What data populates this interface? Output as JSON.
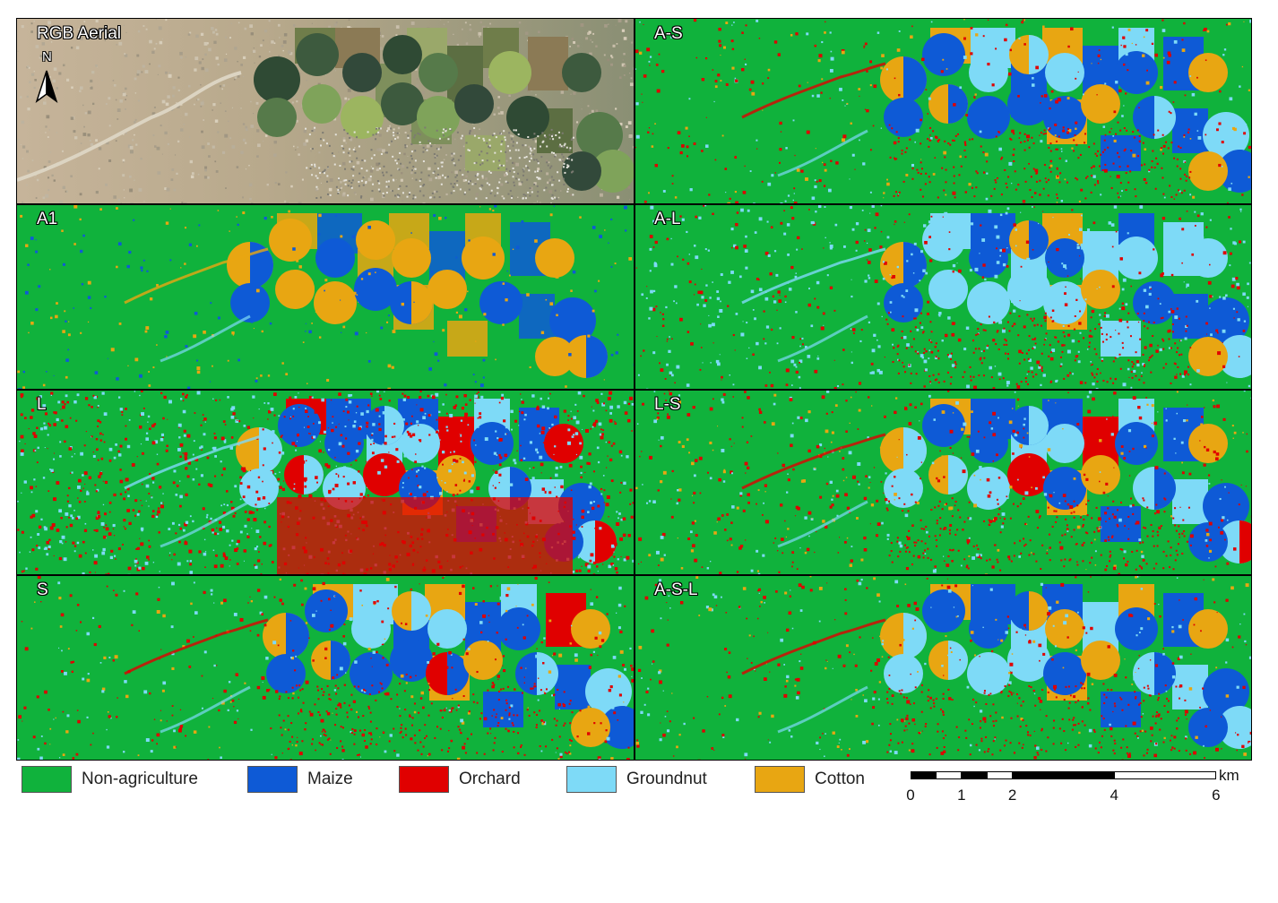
{
  "panels": [
    {
      "id": "rgb",
      "label": "RGB Aerial",
      "kind": "aerial"
    },
    {
      "id": "a-s",
      "label": "A-S",
      "kind": "class",
      "variant": "as"
    },
    {
      "id": "a1",
      "label": "A1",
      "kind": "class",
      "variant": "a1"
    },
    {
      "id": "a-l",
      "label": "A-L",
      "kind": "class",
      "variant": "al"
    },
    {
      "id": "l",
      "label": "L",
      "kind": "class",
      "variant": "l"
    },
    {
      "id": "l-s",
      "label": "L-S",
      "kind": "class",
      "variant": "ls"
    },
    {
      "id": "s",
      "label": "S",
      "kind": "class",
      "variant": "s"
    },
    {
      "id": "a-s-l",
      "label": "A-S-L",
      "kind": "class",
      "variant": "asl"
    }
  ],
  "north": {
    "label": "N"
  },
  "legend": [
    {
      "label": "Non-agriculture",
      "color": "#10b23c"
    },
    {
      "label": "Maize",
      "color": "#0e5ad6"
    },
    {
      "label": "Orchard",
      "color": "#e00000"
    },
    {
      "label": "Groundnut",
      "color": "#7edaf7"
    },
    {
      "label": "Cotton",
      "color": "#e8a612"
    }
  ],
  "scale_bar": {
    "unit": "km",
    "ticks": [
      "0",
      "1",
      "2",
      "4",
      "6"
    ]
  }
}
